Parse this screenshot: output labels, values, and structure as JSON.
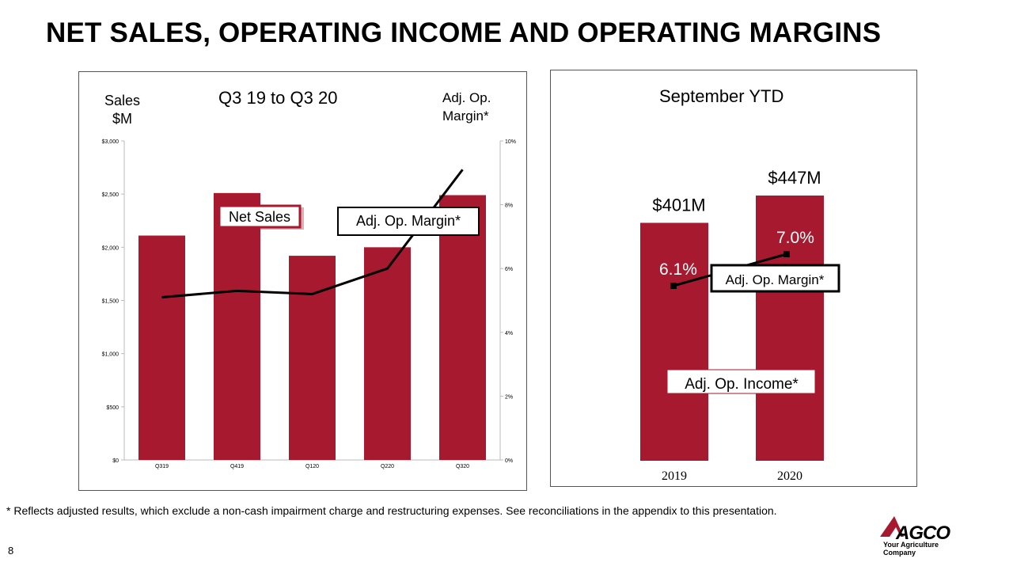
{
  "title": "NET SALES, OPERATING INCOME AND OPERATING MARGINS",
  "footnote": "* Reflects adjusted results, which exclude a non-cash impairment charge and restructuring expenses. See reconciliations in the appendix to this presentation.",
  "page_number": "8",
  "logo": {
    "word": "AGCO",
    "tagline": "Your Agriculture Company",
    "icon": "agco-triangle-icon"
  },
  "colors": {
    "bar": "#A6192E",
    "line": "#000000",
    "label_red": "#A6192E"
  },
  "chart_data": [
    {
      "type": "bar",
      "title": "Q3 19 to Q3 20",
      "ylabel_left": [
        "Sales",
        "$M"
      ],
      "ylabel_right": [
        "Adj. Op.",
        "Margin*"
      ],
      "categories": [
        "Q319",
        "Q419",
        "Q120",
        "Q220",
        "Q320"
      ],
      "series": [
        {
          "name": "Net Sales",
          "type": "bar",
          "axis": "left",
          "values": [
            2110,
            2510,
            1920,
            2000,
            2490
          ]
        },
        {
          "name": "Adj. Op. Margin*",
          "type": "line",
          "axis": "right",
          "values": [
            5.1,
            5.3,
            5.2,
            6.0,
            9.1
          ]
        }
      ],
      "left_ticks": [
        "$0",
        "$500",
        "$1,000",
        "$1,500",
        "$2,000",
        "$2,500",
        "$3,000"
      ],
      "left_ylim": [
        0,
        3000
      ],
      "right_ticks": [
        "0%",
        "2%",
        "4%",
        "6%",
        "8%",
        "10%"
      ],
      "right_ylim": [
        0,
        10
      ],
      "grid": false
    },
    {
      "type": "bar",
      "title": "September YTD",
      "categories": [
        "2019",
        "2020"
      ],
      "series": [
        {
          "name": "Adj. Op. Income*",
          "type": "bar",
          "values": [
            401,
            447
          ],
          "labels": [
            "$401M",
            "$447M"
          ]
        },
        {
          "name": "Adj. Op. Margin*",
          "type": "line",
          "values": [
            6.1,
            7.0
          ],
          "labels": [
            "6.1%",
            "7.0%"
          ]
        }
      ],
      "grid": false
    }
  ]
}
